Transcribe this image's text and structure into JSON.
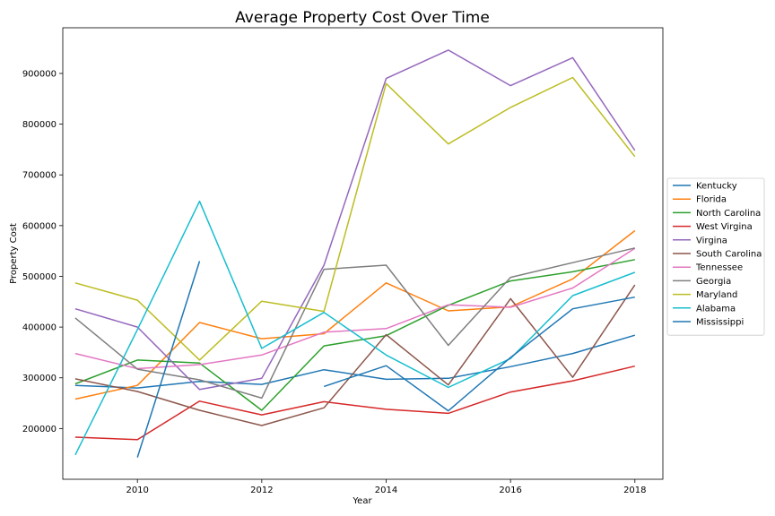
{
  "chart_data": {
    "type": "line",
    "title": "Average Property Cost Over Time",
    "xlabel": "Year",
    "ylabel": "Property Cost",
    "xlim": [
      2008.8,
      2018.45
    ],
    "ylim": [
      100000,
      990000
    ],
    "xticks": [
      2010,
      2012,
      2014,
      2016,
      2018
    ],
    "yticks": [
      200000,
      300000,
      400000,
      500000,
      600000,
      700000,
      800000,
      900000
    ],
    "grid": false,
    "legend": "center-right outside",
    "series": [
      {
        "name": "Kentucky",
        "color": "#1f77b4",
        "x": [
          2009,
          2010,
          2011,
          2012,
          2013,
          2014,
          2015,
          2016,
          2017,
          2018
        ],
        "y": [
          285000,
          280000,
          293000,
          287000,
          316000,
          297000,
          299000,
          322000,
          348000,
          384000
        ]
      },
      {
        "name": "Florida",
        "color": "#ff7f0e",
        "x": [
          2009,
          2010,
          2011,
          2012,
          2013,
          2014,
          2015,
          2016,
          2017,
          2018
        ],
        "y": [
          258000,
          285000,
          409000,
          377000,
          387000,
          487000,
          432000,
          440000,
          495000,
          590000
        ]
      },
      {
        "name": "North Carolina",
        "color": "#2ca02c",
        "x": [
          2009,
          2010,
          2011,
          2012,
          2013,
          2014,
          2015,
          2016,
          2017,
          2018
        ],
        "y": [
          288000,
          335000,
          329000,
          236000,
          363000,
          383000,
          443000,
          491000,
          509000,
          533000
        ]
      },
      {
        "name": "West Virgina",
        "color": "#d62728",
        "x": [
          2009,
          2010,
          2011,
          2012,
          2013,
          2014,
          2015,
          2016,
          2017,
          2018
        ],
        "y": [
          183000,
          178000,
          254000,
          227000,
          253000,
          238000,
          230000,
          272000,
          294000,
          323000
        ]
      },
      {
        "name": "Virgina",
        "color": "#9467bd",
        "x": [
          2009,
          2010,
          2011,
          2012,
          2013,
          2014,
          2015,
          2016,
          2017,
          2018
        ],
        "y": [
          436000,
          400000,
          277000,
          299000,
          522000,
          890000,
          946000,
          876000,
          931000,
          748000
        ]
      },
      {
        "name": "South Carolina",
        "color": "#8c564b",
        "x": [
          2009,
          2010,
          2011,
          2012,
          2013,
          2014,
          2015,
          2016,
          2017,
          2018
        ],
        "y": [
          298000,
          273000,
          236000,
          206000,
          241000,
          385000,
          286000,
          456000,
          301000,
          483000
        ]
      },
      {
        "name": "Tennessee",
        "color": "#e377c2",
        "x": [
          2009,
          2010,
          2011,
          2012,
          2013,
          2014,
          2015,
          2016,
          2017,
          2018
        ],
        "y": [
          348000,
          318000,
          326000,
          345000,
          390000,
          397000,
          444000,
          439000,
          477000,
          555000
        ]
      },
      {
        "name": "Georgia",
        "color": "#7f7f7f",
        "x": [
          2009,
          2010,
          2011,
          2012,
          2013,
          2014,
          2015,
          2016,
          2017,
          2018
        ],
        "y": [
          418000,
          317000,
          296000,
          260000,
          514000,
          522000,
          364000,
          498000,
          527000,
          556000
        ]
      },
      {
        "name": "Maryland",
        "color": "#bcbd22",
        "x": [
          2009,
          2010,
          2011,
          2012,
          2013,
          2014,
          2015,
          2016,
          2017,
          2018
        ],
        "y": [
          487000,
          453000,
          335000,
          451000,
          431000,
          880000,
          761000,
          833000,
          892000,
          736000
        ]
      },
      {
        "name": "Alabama",
        "color": "#17becf",
        "x": [
          2009,
          2010,
          2011,
          2012,
          2013,
          2014,
          2015,
          2016,
          2017,
          2018
        ],
        "y": [
          148000,
          395000,
          648000,
          358000,
          429000,
          345000,
          281000,
          338000,
          462000,
          508000
        ]
      },
      {
        "name": "Mississippi",
        "color": "#1f77b4",
        "x": [
          2010,
          2011,
          null,
          2013,
          2014,
          2015,
          2016,
          2017,
          2018
        ],
        "y": [
          143000,
          530000,
          null,
          283000,
          324000,
          235000,
          340000,
          436000,
          459000
        ]
      }
    ]
  }
}
